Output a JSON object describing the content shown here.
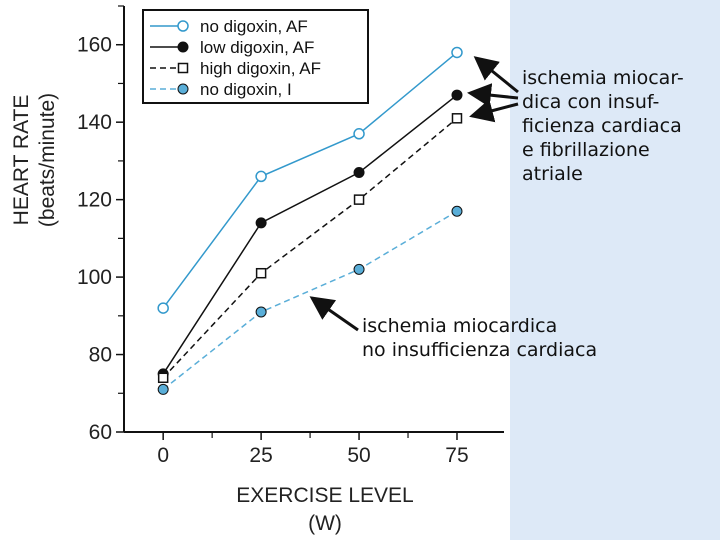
{
  "chart_data": {
    "type": "line",
    "ylabel": "HEART RATE",
    "ylabel_unit": "(beats/minute)",
    "xlabel": "EXERCISE LEVEL",
    "xlabel_unit": "(W)",
    "x": [
      0,
      25,
      50,
      75
    ],
    "xticks": [
      "0",
      "25",
      "50",
      "75"
    ],
    "yticks": [
      "60",
      "80",
      "100",
      "120",
      "140",
      "160"
    ],
    "ylim": [
      60,
      170
    ],
    "xlim": [
      -10,
      87
    ],
    "grid": false,
    "legend_position": "top-left",
    "series": [
      {
        "name": "no digoxin, AF",
        "values": [
          92,
          126,
          137,
          158
        ],
        "color": "#3399cc",
        "dash": "solid",
        "marker": "open-circle"
      },
      {
        "name": "low digoxin, AF",
        "values": [
          75,
          114,
          127,
          147
        ],
        "color": "#111111",
        "dash": "solid",
        "marker": "filled-circle"
      },
      {
        "name": "high digoxin, AF",
        "values": [
          74,
          101,
          120,
          141
        ],
        "color": "#111111",
        "dash": "dashed",
        "marker": "open-square"
      },
      {
        "name": "no digoxin, I",
        "values": [
          71,
          91,
          102,
          117
        ],
        "color": "#5aaed8",
        "dash": "dashed",
        "marker": "filled-circle"
      }
    ],
    "annotations": [
      {
        "id": "af",
        "lines": [
          "ischemia miocar-",
          "dica con insuf-",
          "ficienza cardiaca",
          "e fibrillazione",
          "atriale"
        ]
      },
      {
        "id": "no_hf",
        "lines": [
          "ischemia miocardica",
          "no insufficienza cardiaca"
        ]
      }
    ]
  }
}
